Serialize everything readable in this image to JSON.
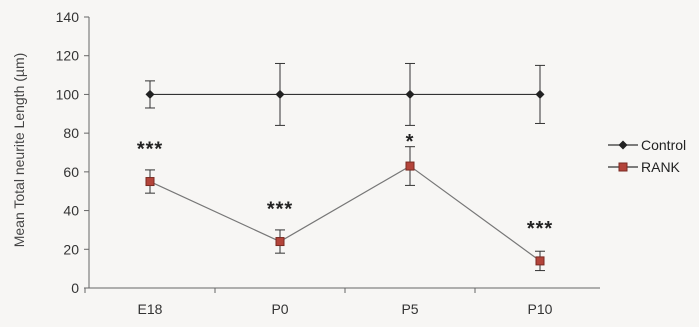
{
  "chart_data": {
    "type": "line",
    "categories": [
      "E18",
      "P0",
      "P5",
      "P10"
    ],
    "ylabel": "Mean Total neurite Length (µm)",
    "ylim": [
      0,
      140
    ],
    "yticks": [
      0,
      20,
      40,
      60,
      80,
      100,
      120,
      140
    ],
    "grid": false,
    "legend_position": "right",
    "series": [
      {
        "name": "Control",
        "values": [
          100,
          100,
          100,
          100
        ],
        "errors": [
          7,
          16,
          16,
          15
        ],
        "color": "#222222",
        "marker": "diamond"
      },
      {
        "name": "RANK",
        "values": [
          55,
          24,
          63,
          14
        ],
        "errors": [
          6,
          6,
          10,
          5
        ],
        "color": "#b3443a",
        "marker": "square"
      }
    ],
    "annotations": [
      {
        "category": "E18",
        "text": "***",
        "y": 72
      },
      {
        "category": "P0",
        "text": "***",
        "y": 41
      },
      {
        "category": "P5",
        "text": "*",
        "y": 76
      },
      {
        "category": "P10",
        "text": "***",
        "y": 31
      }
    ]
  }
}
